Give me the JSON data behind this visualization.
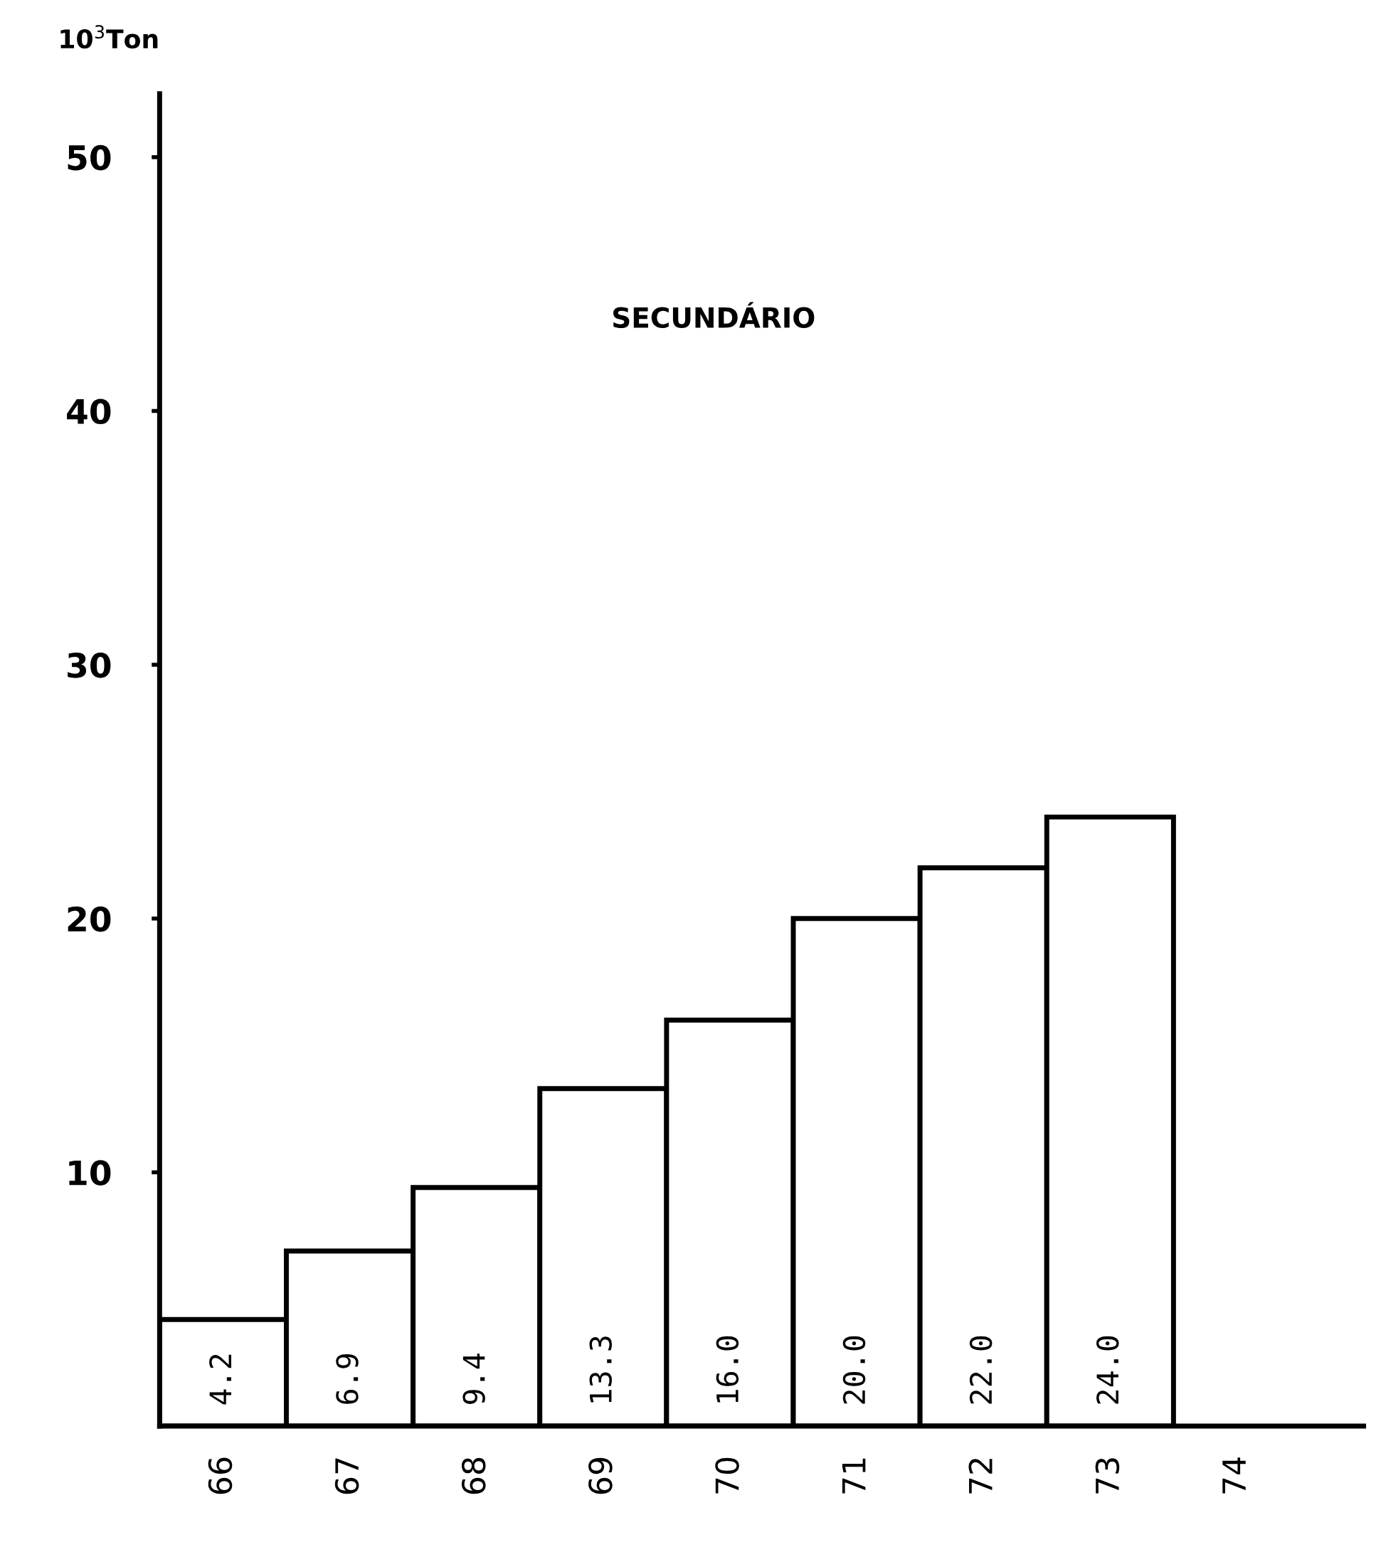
{
  "chart_data": {
    "type": "bar",
    "title": "SECUNDÁRIO",
    "ylabel": "10$^{3}$Ton",
    "categories": [
      "66",
      "67",
      "68",
      "69",
      "70",
      "71",
      "72",
      "73",
      "74"
    ],
    "values": [
      4.2,
      6.9,
      9.4,
      13.3,
      16.0,
      20.0,
      22.0,
      24.0,
      null
    ],
    "value_labels": [
      "4.2",
      "6.9",
      "9.4",
      "13.3",
      "16.0",
      "20.0",
      "22.0",
      "24.0",
      null
    ],
    "color": "#ffffff",
    "ylim": [
      0,
      52.5
    ],
    "yticks": [
      10,
      20,
      30,
      40,
      50
    ],
    "grid": false,
    "legend": false
  }
}
